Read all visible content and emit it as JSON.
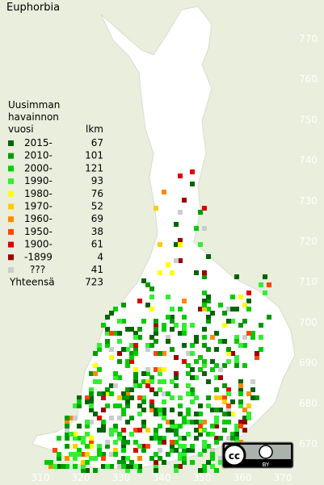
{
  "title": "Euphorbia",
  "legend": {
    "heading": [
      "Uusimman",
      "havainnon",
      "vuosi"
    ],
    "count_heading": "lkm",
    "rows": [
      {
        "label": "2015-",
        "count": 67,
        "color": "#006400"
      },
      {
        "label": "2010-",
        "count": 101,
        "color": "#009a00"
      },
      {
        "label": "2000-",
        "count": 121,
        "color": "#00cc00"
      },
      {
        "label": "1990-",
        "count": 93,
        "color": "#33ee33"
      },
      {
        "label": "1980-",
        "count": 76,
        "color": "#ffff00"
      },
      {
        "label": "1970-",
        "count": 52,
        "color": "#ffcc00"
      },
      {
        "label": "1960-",
        "count": 69,
        "color": "#ff8800"
      },
      {
        "label": "1950-",
        "count": 38,
        "color": "#ff4400"
      },
      {
        "label": "1900-",
        "count": 61,
        "color": "#dd0000"
      },
      {
        "label": "-1899",
        "count": 4,
        "color": "#990000"
      },
      {
        "label": "???",
        "count": 41,
        "color": "#cccccc"
      }
    ],
    "total_label": "Yhteensä",
    "total": 723
  },
  "map": {
    "xticks": [
      310,
      320,
      330,
      340,
      350,
      360,
      370
    ],
    "yticks": [
      670,
      680,
      690,
      700,
      710,
      720,
      730,
      740,
      750,
      760,
      770
    ]
  },
  "license": {
    "cc": "cc",
    "by": "BY"
  }
}
